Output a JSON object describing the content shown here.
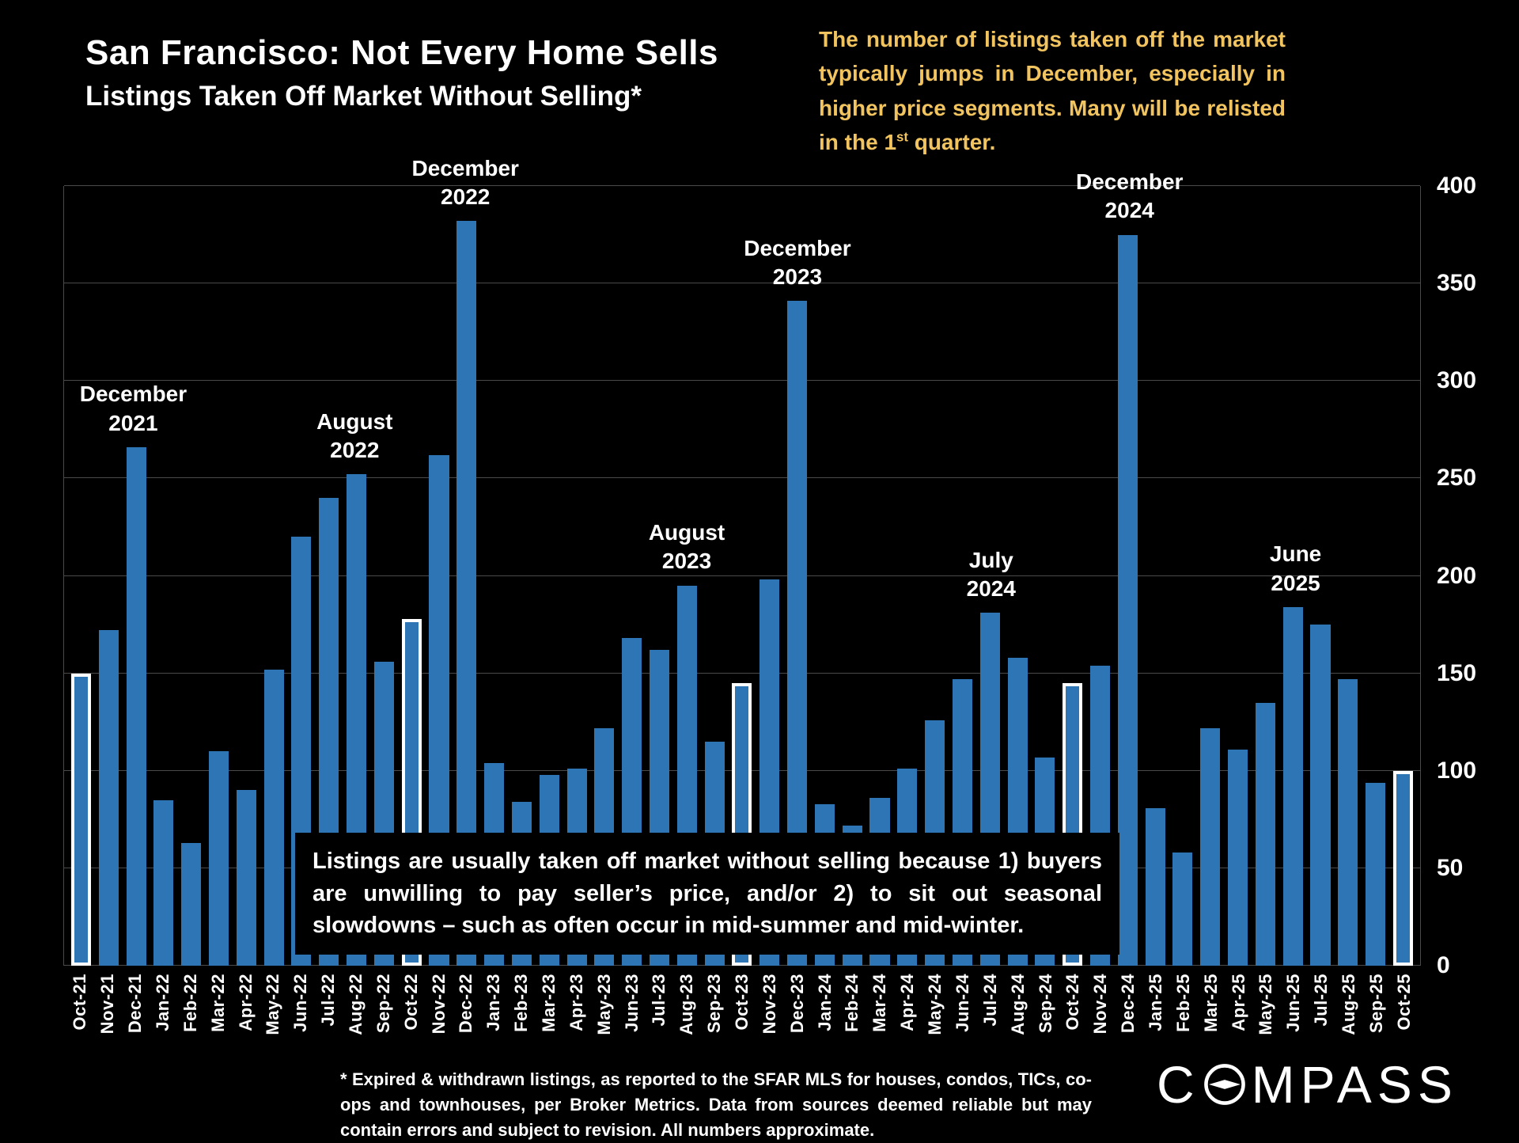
{
  "title": "San Francisco: Not Every Home Sells",
  "subtitle": "Listings Taken Off Market Without Selling*",
  "callout": {
    "part1": "The number of listings taken off the market typically jumps in December, especially in higher price segments. Many will be relisted in the 1",
    "sup": "st",
    "part2": " quarter."
  },
  "note_box": "Listings are usually taken off market without selling because 1) buyers are unwilling to pay seller’s price, and/or 2) to sit out seasonal slowdowns – such as often occur in mid-summer and mid-winter.",
  "footnote": "* Expired & withdrawn listings, as reported to the SFAR MLS for houses, condos, TICs, co-ops and townhouses, per Broker Metrics. Data from sources deemed reliable but may contain errors and subject to revision. All numbers approximate.",
  "logo": {
    "prefix": "C",
    "suffix": "MPASS",
    "full": "COMPASS"
  },
  "colors": {
    "background": "#000000",
    "bar": "#2E75B6",
    "highlight_border": "#FFFFFF",
    "accent_gold": "#F2C45F",
    "gridline": "#4A4A4A",
    "text": "#FFFFFF"
  },
  "chart_data": {
    "type": "bar",
    "title": "San Francisco: Not Every Home Sells",
    "subtitle": "Listings Taken Off Market Without Selling*",
    "xlabel": "",
    "ylabel": "",
    "ylim": [
      0,
      400
    ],
    "ytick_step": 50,
    "yticks": [
      0,
      50,
      100,
      150,
      200,
      250,
      300,
      350,
      400
    ],
    "grid": true,
    "legend": "none",
    "y_axis_side": "right",
    "categories": [
      "Oct-21",
      "Nov-21",
      "Dec-21",
      "Jan-22",
      "Feb-22",
      "Mar-22",
      "Apr-22",
      "May-22",
      "Jun-22",
      "Jul-22",
      "Aug-22",
      "Sep-22",
      "Oct-22",
      "Nov-22",
      "Dec-22",
      "Jan-23",
      "Feb-23",
      "Mar-23",
      "Apr-23",
      "May-23",
      "Jun-23",
      "Jul-23",
      "Aug-23",
      "Sep-23",
      "Oct-23",
      "Nov-23",
      "Dec-23",
      "Jan-24",
      "Feb-24",
      "Mar-24",
      "Apr-24",
      "May-24",
      "Jun-24",
      "Jul-24",
      "Aug-24",
      "Sep-24",
      "Oct-24",
      "Nov-24",
      "Dec-24",
      "Jan-25",
      "Feb-25",
      "Mar-25",
      "Apr-25",
      "May-25",
      "Jun-25",
      "Jul-25",
      "Aug-25",
      "Sep-25",
      "Oct-25"
    ],
    "values": [
      150,
      172,
      266,
      85,
      63,
      110,
      90,
      152,
      220,
      240,
      252,
      156,
      178,
      262,
      382,
      104,
      84,
      98,
      101,
      122,
      168,
      162,
      195,
      115,
      145,
      198,
      341,
      83,
      72,
      86,
      101,
      126,
      147,
      181,
      158,
      107,
      145,
      154,
      375,
      81,
      58,
      122,
      111,
      135,
      184,
      175,
      147,
      94,
      100
    ],
    "highlighted_categories": [
      "Oct-21",
      "Oct-22",
      "Oct-23",
      "Oct-24",
      "Oct-25"
    ],
    "annotations": [
      {
        "lines": [
          "December",
          "2021"
        ],
        "category": "Dec-21"
      },
      {
        "lines": [
          "August",
          "2022"
        ],
        "category": "Aug-22"
      },
      {
        "lines": [
          "December",
          "2022"
        ],
        "category": "Dec-22"
      },
      {
        "lines": [
          "August",
          "2023"
        ],
        "category": "Aug-23"
      },
      {
        "lines": [
          "December",
          "2023"
        ],
        "category": "Dec-23"
      },
      {
        "lines": [
          "July",
          "2024"
        ],
        "category": "Jul-24"
      },
      {
        "lines": [
          "December",
          "2024"
        ],
        "category": "Dec-24"
      },
      {
        "lines": [
          "June",
          "2025"
        ],
        "category": "Jun-25"
      }
    ]
  }
}
